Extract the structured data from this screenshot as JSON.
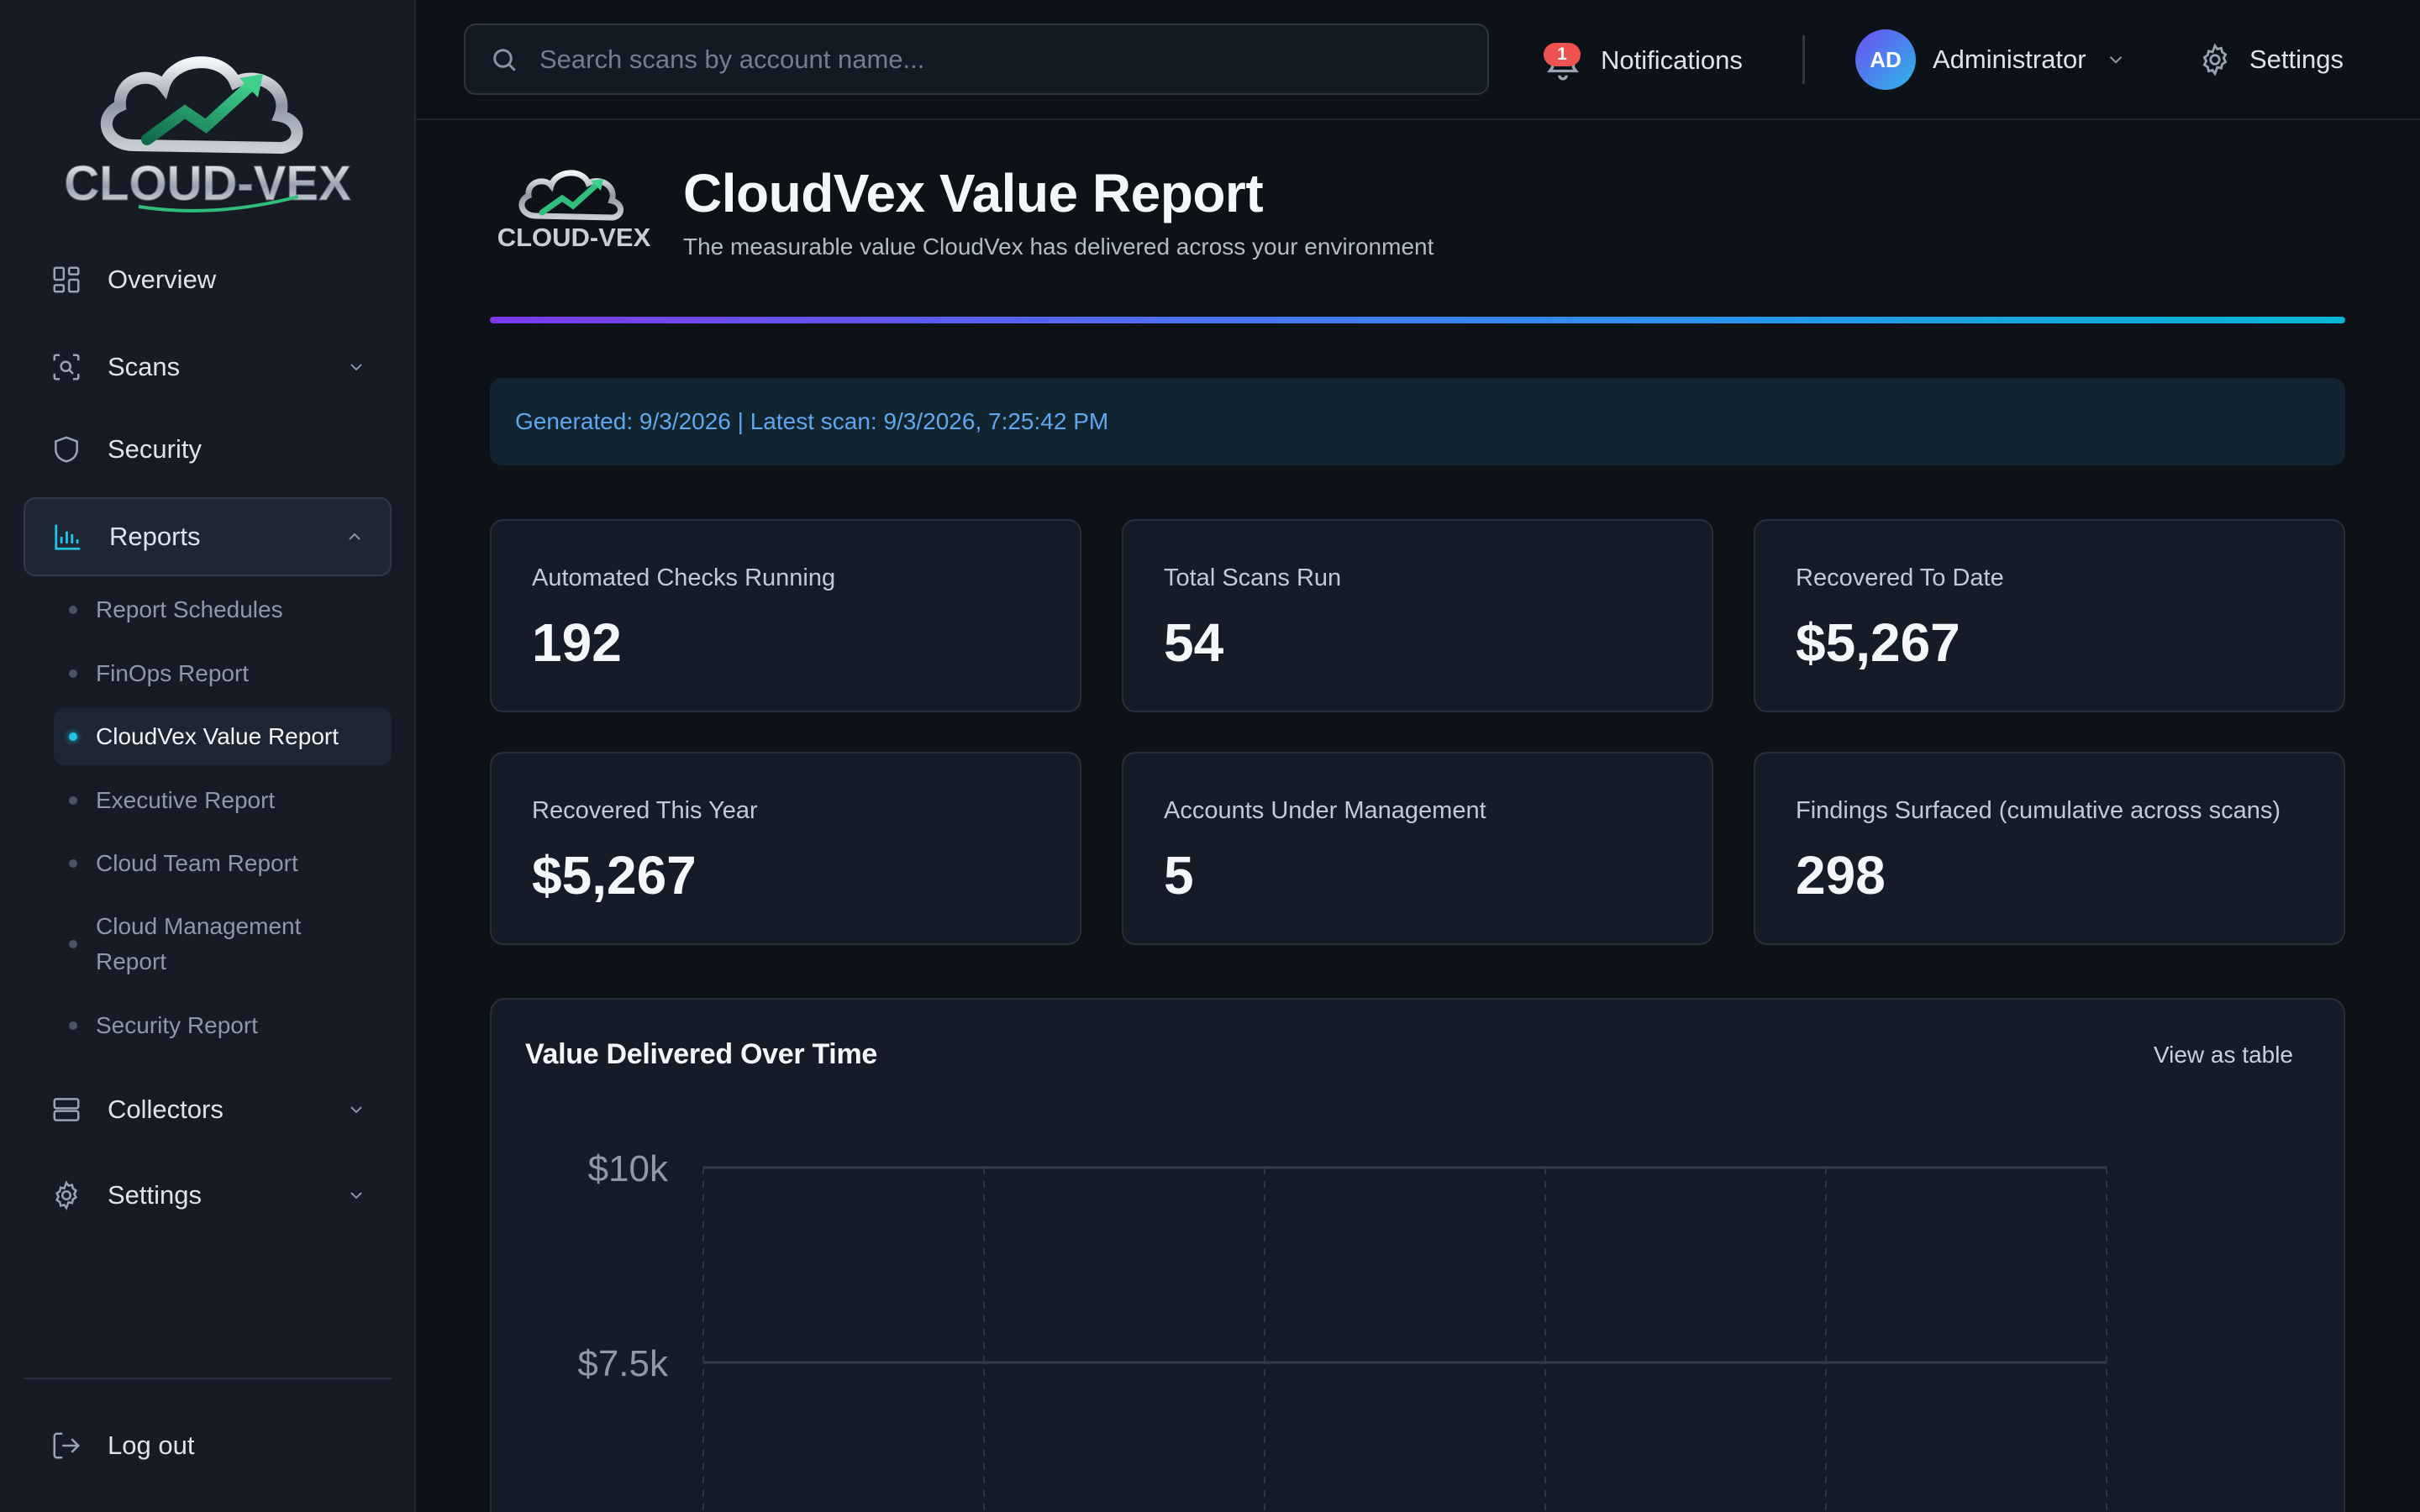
{
  "brand": {
    "logo_text": "CLOUD-VEX"
  },
  "sidebar": {
    "items": [
      {
        "label": "Overview",
        "icon": "grid-icon"
      },
      {
        "label": "Scans",
        "icon": "scan-icon"
      },
      {
        "label": "Security",
        "icon": "shield-icon"
      },
      {
        "label": "Reports",
        "icon": "bar-chart-icon"
      },
      {
        "label": "Collectors",
        "icon": "server-icon"
      },
      {
        "label": "Settings",
        "icon": "gear-icon"
      }
    ],
    "report_subitems": [
      {
        "label": "Report Schedules"
      },
      {
        "label": "FinOps Report"
      },
      {
        "label": "CloudVex Value Report"
      },
      {
        "label": "Executive Report"
      },
      {
        "label": "Cloud Team Report"
      },
      {
        "label": "Cloud Management Report"
      },
      {
        "label": "Security Report"
      }
    ],
    "active_subitem": "CloudVex Value Report",
    "logout_label": "Log out"
  },
  "topbar": {
    "search_placeholder": "Search scans by account name...",
    "notifications_label": "Notifications",
    "notifications_count": "1",
    "user_initials": "AD",
    "user_name": "Administrator",
    "settings_label": "Settings"
  },
  "report": {
    "title": "CloudVex Value Report",
    "subtitle": "The measurable value CloudVex has delivered across your environment",
    "banner": "Generated: 9/3/2026 | Latest scan: 9/3/2026, 7:25:42 PM"
  },
  "stats": [
    {
      "label": "Automated Checks Running",
      "value": "192"
    },
    {
      "label": "Total Scans Run",
      "value": "54"
    },
    {
      "label": "Recovered To Date",
      "value": "$5,267"
    },
    {
      "label": "Recovered This Year",
      "value": "$5,267"
    },
    {
      "label": "Accounts Under Management",
      "value": "5"
    },
    {
      "label": "Findings Surfaced (cumulative across scans)",
      "value": "298"
    }
  ],
  "chart": {
    "title": "Value Delivered Over Time",
    "view_table_label": "View as table"
  },
  "chart_data": {
    "type": "line",
    "title": "Value Delivered Over Time",
    "xlabel": "",
    "ylabel": "",
    "y_tick_labels": [
      "$10k",
      "$7.5k"
    ],
    "y_ticks": [
      10000,
      7500
    ],
    "grid": true,
    "series": []
  },
  "colors": {
    "accent_gradient_start": "#7c3aed",
    "accent_gradient_end": "#06b6d4",
    "active_dot": "#22c3e6",
    "badge": "#ef5350",
    "banner_text": "#5fa8f0"
  }
}
